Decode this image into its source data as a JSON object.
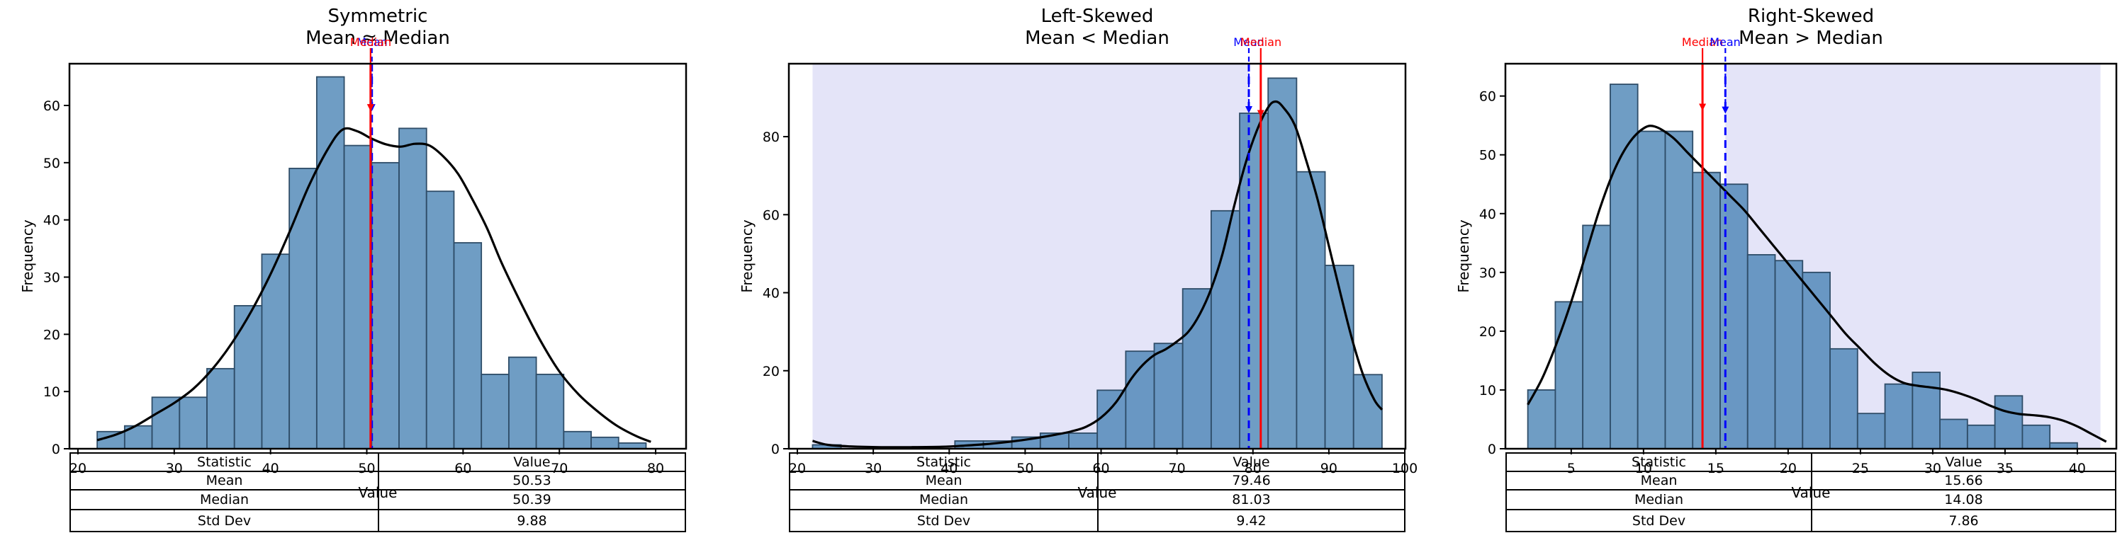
{
  "figure": {
    "background": "#ffffff"
  },
  "colors": {
    "bar_fill": "rgba(70,130,180,0.78)",
    "bar_edge": "#2f4d68",
    "kde_line": "#000000",
    "mean_line": "#0000ff",
    "median_line": "#ff0000",
    "shade": "#e4e4f8",
    "spine": "#000000",
    "text": "#000000"
  },
  "chart_data": [
    {
      "type": "histogram",
      "title": "Symmetric",
      "subtitle": "Mean ≈ Median",
      "xlabel": "Value",
      "ylabel": "Frequency",
      "bins": {
        "start": 22.0,
        "width": 2.85
      },
      "frequencies": [
        3,
        4,
        9,
        9,
        14,
        25,
        34,
        49,
        65,
        53,
        50,
        56,
        45,
        36,
        13,
        16,
        13,
        3,
        2,
        1
      ],
      "kde": [
        [
          22,
          1.5
        ],
        [
          24,
          2.5
        ],
        [
          26,
          4
        ],
        [
          28,
          6
        ],
        [
          30,
          8
        ],
        [
          32,
          10.5
        ],
        [
          34,
          14
        ],
        [
          36,
          18.5
        ],
        [
          38,
          24
        ],
        [
          40,
          30.5
        ],
        [
          42,
          38
        ],
        [
          44,
          46
        ],
        [
          46,
          52.5
        ],
        [
          47.5,
          55.8
        ],
        [
          49,
          55.5
        ],
        [
          50.5,
          54.2
        ],
        [
          52,
          53.2
        ],
        [
          53.5,
          52.8
        ],
        [
          55,
          53.3
        ],
        [
          56.5,
          53
        ],
        [
          58,
          51
        ],
        [
          59.5,
          48
        ],
        [
          61,
          43.5
        ],
        [
          62.5,
          38.5
        ],
        [
          64,
          32.5
        ],
        [
          66,
          25.5
        ],
        [
          68,
          19
        ],
        [
          70,
          13.5
        ],
        [
          72,
          9.5
        ],
        [
          74,
          6.5
        ],
        [
          76,
          4
        ],
        [
          78,
          2.2
        ],
        [
          79.5,
          1.2
        ]
      ],
      "xlim": [
        19.12,
        83.16
      ],
      "ylim": [
        0,
        67.3
      ],
      "xticks": [
        20,
        30,
        40,
        50,
        60,
        70,
        80
      ],
      "yticks": [
        0,
        10,
        20,
        30,
        40,
        50,
        60
      ],
      "grid": false,
      "shade": null,
      "stats": {
        "mean": 50.53,
        "median": 50.39,
        "std_dev": 9.88
      },
      "annotations": [
        {
          "label": "Mean",
          "x": 50.53,
          "color": "#0000ff",
          "style": "dashed",
          "arrow_y": 59
        },
        {
          "label": "Median",
          "x": 50.39,
          "color": "#ff0000",
          "style": "solid",
          "arrow_y": 59
        }
      ],
      "table": {
        "header": [
          "Statistic",
          "Value"
        ],
        "rows": [
          [
            "Mean",
            "50.53"
          ],
          [
            "Median",
            "50.39"
          ],
          [
            "Std Dev",
            "9.88"
          ]
        ]
      }
    },
    {
      "type": "histogram",
      "title": "Left-Skewed",
      "subtitle": "Mean < Median",
      "xlabel": "Value",
      "ylabel": "Frequency",
      "bins": {
        "start": 22.0,
        "width": 3.75
      },
      "frequencies": [
        1,
        0,
        0,
        0,
        0,
        2,
        2,
        3,
        4,
        4,
        15,
        25,
        27,
        41,
        61,
        86,
        95,
        71,
        47,
        19
      ],
      "kde": [
        [
          22,
          2
        ],
        [
          24,
          1
        ],
        [
          27,
          0.6
        ],
        [
          31,
          0.4
        ],
        [
          35,
          0.4
        ],
        [
          39,
          0.5
        ],
        [
          42,
          0.8
        ],
        [
          45,
          1.2
        ],
        [
          48,
          1.8
        ],
        [
          51,
          2.6
        ],
        [
          54,
          3.6
        ],
        [
          56,
          4.4
        ],
        [
          58,
          5.6
        ],
        [
          60,
          8
        ],
        [
          62,
          12
        ],
        [
          64,
          18
        ],
        [
          65.5,
          21.5
        ],
        [
          67,
          24
        ],
        [
          68.5,
          25.5
        ],
        [
          70,
          27.5
        ],
        [
          71.5,
          30
        ],
        [
          73,
          34.5
        ],
        [
          74.5,
          41
        ],
        [
          76,
          50
        ],
        [
          77.5,
          62
        ],
        [
          79,
          73
        ],
        [
          80.5,
          81.5
        ],
        [
          82,
          87.5
        ],
        [
          83,
          89
        ],
        [
          84,
          87.5
        ],
        [
          85.5,
          83
        ],
        [
          87,
          74
        ],
        [
          88.5,
          64
        ],
        [
          90,
          52
        ],
        [
          91.5,
          40
        ],
        [
          93,
          28.5
        ],
        [
          94.5,
          19
        ],
        [
          96,
          12.5
        ],
        [
          97,
          10
        ]
      ],
      "xlim": [
        18.88,
        100.09
      ],
      "ylim": [
        0,
        98.7
      ],
      "xticks": [
        20,
        30,
        40,
        50,
        60,
        70,
        80,
        90,
        100
      ],
      "yticks": [
        0,
        20,
        40,
        60,
        80
      ],
      "grid": false,
      "shade": [
        22.0,
        79.46
      ],
      "stats": {
        "mean": 79.46,
        "median": 81.03,
        "std_dev": 9.42
      },
      "annotations": [
        {
          "label": "Mean",
          "x": 79.46,
          "color": "#0000ff",
          "style": "dashed",
          "arrow_y": 86
        },
        {
          "label": "Median",
          "x": 81.03,
          "color": "#ff0000",
          "style": "solid",
          "arrow_y": 85
        }
      ],
      "table": {
        "header": [
          "Statistic",
          "Value"
        ],
        "rows": [
          [
            "Mean",
            "79.46"
          ],
          [
            "Median",
            "81.03"
          ],
          [
            "Std Dev",
            "9.42"
          ]
        ]
      }
    },
    {
      "type": "histogram",
      "title": "Right-Skewed",
      "subtitle": "Mean > Median",
      "xlabel": "Value",
      "ylabel": "Frequency",
      "bins": {
        "start": 2.0,
        "width": 1.9
      },
      "frequencies": [
        10,
        25,
        38,
        62,
        54,
        54,
        47,
        45,
        33,
        32,
        30,
        17,
        6,
        11,
        13,
        5,
        4,
        9,
        4,
        1
      ],
      "kde": [
        [
          2,
          7.5
        ],
        [
          3,
          12
        ],
        [
          4,
          18
        ],
        [
          5,
          25
        ],
        [
          6,
          33
        ],
        [
          7,
          41
        ],
        [
          8,
          47.5
        ],
        [
          9,
          52
        ],
        [
          10,
          54.5
        ],
        [
          10.8,
          54.8
        ],
        [
          12,
          53
        ],
        [
          13,
          50.5
        ],
        [
          14,
          48
        ],
        [
          15,
          45.5
        ],
        [
          16,
          43
        ],
        [
          17,
          40.5
        ],
        [
          18,
          37.5
        ],
        [
          19,
          34.5
        ],
        [
          20,
          31.5
        ],
        [
          21,
          28.5
        ],
        [
          22,
          25.5
        ],
        [
          23,
          22.5
        ],
        [
          24,
          19.5
        ],
        [
          25,
          17
        ],
        [
          26,
          14.5
        ],
        [
          27,
          12.5
        ],
        [
          28,
          11.2
        ],
        [
          29,
          10.7
        ],
        [
          30,
          10.4
        ],
        [
          31,
          10
        ],
        [
          32,
          9.3
        ],
        [
          33,
          8.4
        ],
        [
          34,
          7.3
        ],
        [
          35,
          6.4
        ],
        [
          36,
          5.9
        ],
        [
          37,
          5.7
        ],
        [
          38,
          5.4
        ],
        [
          39,
          4.8
        ],
        [
          40,
          3.8
        ],
        [
          41,
          2.5
        ],
        [
          42,
          1.2
        ]
      ],
      "xlim": [
        0.45,
        42.7
      ],
      "ylim": [
        0,
        65.5
      ],
      "xticks": [
        5,
        10,
        15,
        20,
        25,
        30,
        35,
        40
      ],
      "yticks": [
        0,
        10,
        20,
        30,
        40,
        50,
        60
      ],
      "grid": false,
      "shade": [
        15.66,
        41.6
      ],
      "stats": {
        "mean": 15.66,
        "median": 14.08,
        "std_dev": 7.86
      },
      "annotations": [
        {
          "label": "Median",
          "x": 14.08,
          "color": "#ff0000",
          "style": "solid",
          "arrow_y": 57.5
        },
        {
          "label": "Mean",
          "x": 15.66,
          "color": "#0000ff",
          "style": "dashed",
          "arrow_y": 57
        }
      ],
      "table": {
        "header": [
          "Statistic",
          "Value"
        ],
        "rows": [
          [
            "Mean",
            "15.66"
          ],
          [
            "Median",
            "14.08"
          ],
          [
            "Std Dev",
            "7.86"
          ]
        ]
      }
    }
  ]
}
